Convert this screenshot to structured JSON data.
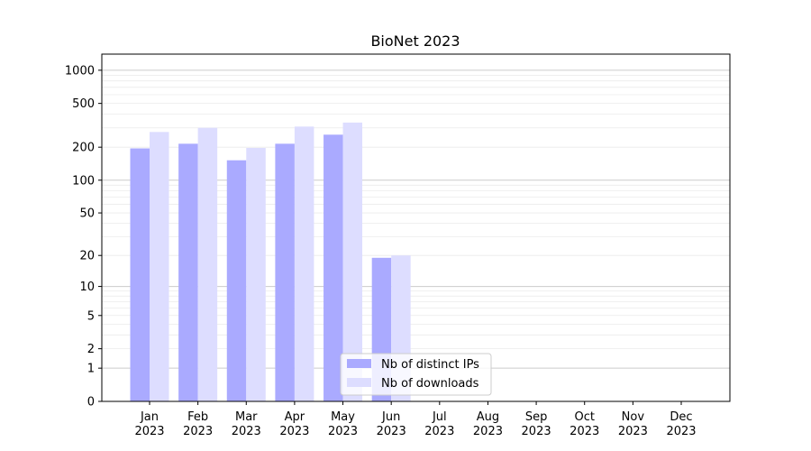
{
  "chart_data": {
    "type": "bar",
    "title": "BioNet 2023",
    "xlabel": "",
    "ylabel": "",
    "yscale": "symlog",
    "categories": [
      [
        "Jan",
        "2023"
      ],
      [
        "Feb",
        "2023"
      ],
      [
        "Mar",
        "2023"
      ],
      [
        "Apr",
        "2023"
      ],
      [
        "May",
        "2023"
      ],
      [
        "Jun",
        "2023"
      ],
      [
        "Jul",
        "2023"
      ],
      [
        "Aug",
        "2023"
      ],
      [
        "Sep",
        "2023"
      ],
      [
        "Oct",
        "2023"
      ],
      [
        "Nov",
        "2023"
      ],
      [
        "Dec",
        "2023"
      ]
    ],
    "series": [
      {
        "name": "Nb of distinct IPs",
        "color": "#aaaaff",
        "values": [
          195,
          215,
          152,
          215,
          260,
          19,
          null,
          null,
          null,
          null,
          null,
          null
        ]
      },
      {
        "name": "Nb of downloads",
        "color": "#ddddff",
        "values": [
          275,
          300,
          197,
          308,
          335,
          20,
          null,
          null,
          null,
          null,
          null,
          null
        ]
      }
    ],
    "yticks": [
      {
        "value": 0,
        "label": "0"
      },
      {
        "value": 1,
        "label": "1"
      },
      {
        "value": 2,
        "label": "2"
      },
      {
        "value": 5,
        "label": "5"
      },
      {
        "value": 10,
        "label": "10"
      },
      {
        "value": 20,
        "label": "20"
      },
      {
        "value": 50,
        "label": "50"
      },
      {
        "value": 100,
        "label": "100"
      },
      {
        "value": 200,
        "label": "200"
      },
      {
        "value": 500,
        "label": "500"
      },
      {
        "value": 1000,
        "label": "1000"
      }
    ],
    "major_grid": [
      1,
      10,
      100,
      1000
    ],
    "ylim": [
      0,
      1400
    ],
    "grid": true,
    "legend_position": "bottom-center"
  }
}
